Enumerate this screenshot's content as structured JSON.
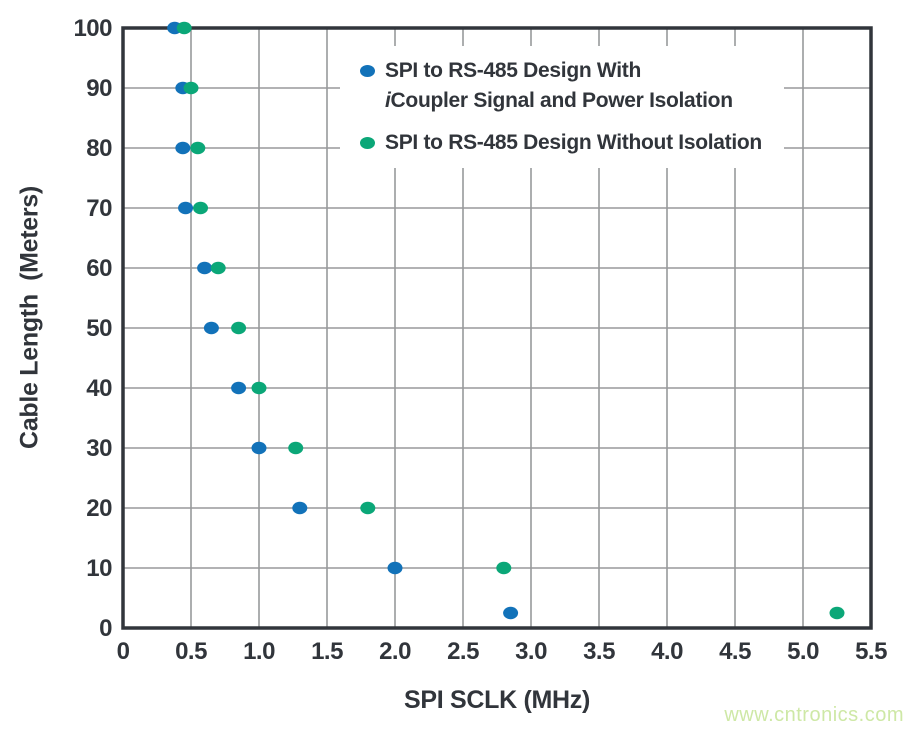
{
  "watermark": {
    "text": "www.cntronics.com",
    "color": "#cee8a6"
  },
  "colors": {
    "blue": "#1272b9",
    "green": "#0ba778",
    "axis": "#31353b",
    "grid": "#98999b",
    "text": "#31353b",
    "background": "#ffffff"
  },
  "chart_data": {
    "type": "scatter",
    "title": "",
    "xlabel": "SPI SCLK (MHz)",
    "ylabel": "Cable Length  (Meters)",
    "xlim": [
      0,
      5.5
    ],
    "ylim": [
      0,
      100
    ],
    "grid": true,
    "legend_position": "top-right-inside",
    "xticks": [
      [
        0,
        "0"
      ],
      [
        0.5,
        "0.5"
      ],
      [
        1,
        "1.0"
      ],
      [
        1.5,
        "1.5"
      ],
      [
        2,
        "2.0"
      ],
      [
        2.5,
        "2.5"
      ],
      [
        3,
        "3.0"
      ],
      [
        3.5,
        "3.5"
      ],
      [
        4,
        "4.0"
      ],
      [
        4.5,
        "4.5"
      ],
      [
        5,
        "5.0"
      ],
      [
        5.5,
        "5.5"
      ]
    ],
    "yticks": [
      [
        0,
        "0"
      ],
      [
        10,
        "10"
      ],
      [
        20,
        "20"
      ],
      [
        30,
        "30"
      ],
      [
        40,
        "40"
      ],
      [
        50,
        "50"
      ],
      [
        60,
        "60"
      ],
      [
        70,
        "70"
      ],
      [
        80,
        "80"
      ],
      [
        90,
        "90"
      ],
      [
        100,
        "100"
      ]
    ],
    "series": [
      {
        "id": "with-isolation",
        "name": "SPI to RS-485 Design With iCoupler Signal and Power Isolation",
        "color_key": "blue",
        "points": [
          [
            0.38,
            100
          ],
          [
            0.44,
            90
          ],
          [
            0.44,
            80
          ],
          [
            0.46,
            70
          ],
          [
            0.6,
            60
          ],
          [
            0.65,
            50
          ],
          [
            0.85,
            40
          ],
          [
            1.0,
            30
          ],
          [
            1.3,
            20
          ],
          [
            2.0,
            10
          ],
          [
            2.85,
            2.5
          ]
        ]
      },
      {
        "id": "without-isolation",
        "name": "SPI to RS-485 Design Without Isolation",
        "color_key": "green",
        "points": [
          [
            0.45,
            100
          ],
          [
            0.5,
            90
          ],
          [
            0.55,
            80
          ],
          [
            0.57,
            70
          ],
          [
            0.7,
            60
          ],
          [
            0.85,
            50
          ],
          [
            1.0,
            40
          ],
          [
            1.27,
            30
          ],
          [
            1.8,
            20
          ],
          [
            2.8,
            10
          ],
          [
            5.25,
            2.5
          ]
        ]
      }
    ],
    "legend": {
      "items": [
        {
          "id": "with-isolation",
          "color_key": "blue",
          "lines": [
            [
              {
                "text": "SPI to RS-485 Design With",
                "italic": false
              }
            ],
            [
              {
                "text": "i",
                "italic": true
              },
              {
                "text": "Coupler Signal and Power Isolation",
                "italic": false
              }
            ]
          ]
        },
        {
          "id": "without-isolation",
          "color_key": "green",
          "lines": [
            [
              {
                "text": "SPI to RS-485 Design Without Isolation",
                "italic": false
              }
            ]
          ]
        }
      ]
    }
  }
}
